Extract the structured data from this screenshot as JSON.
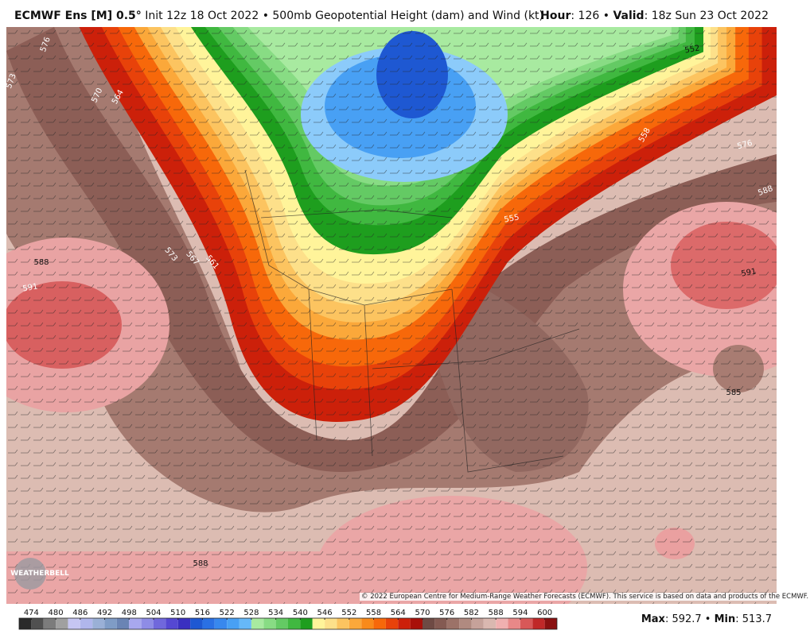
{
  "header": {
    "title": "ECMWF Ens [M] 0.5°",
    "description": "Init 12z 18 Oct 2022 • 500mb Geopotential Height (dam) and Wind (kt)",
    "right": [
      "Hour",
      ": 126 • ",
      "Valid",
      ": 18z Sun 23 Oct 2022"
    ]
  },
  "map": {
    "contour_labels": [
      576,
      573,
      570,
      564,
      573,
      567,
      561,
      588,
      591,
      552,
      558,
      576,
      588,
      555,
      591,
      585,
      588
    ],
    "logo": "WEATHERBELL",
    "copyright": "© 2022 European Centre for Medium-Range Weather Forecasts (ECMWF). This service is based on data and products of the ECMWF."
  },
  "colorbar": {
    "lim": [
      471,
      603
    ],
    "ticks": [
      474,
      480,
      486,
      492,
      498,
      504,
      510,
      516,
      522,
      528,
      534,
      540,
      546,
      552,
      558,
      564,
      570,
      576,
      582,
      588,
      594,
      600
    ],
    "colors": [
      "#2a2a2a",
      "#505050",
      "#7c7c7c",
      "#a0a0a0",
      "#c6c6f2",
      "#b0b6ec",
      "#9ab0d6",
      "#7f9cc6",
      "#6a84b4",
      "#a8a8ee",
      "#8e8ce6",
      "#7068dc",
      "#5548d2",
      "#3a30c0",
      "#1e58d2",
      "#2a70e4",
      "#3888ee",
      "#48a0f4",
      "#66b8f8",
      "#a8eaa0",
      "#88dc84",
      "#64ca64",
      "#40b840",
      "#1e9e1e",
      "#fff49a",
      "#fde08a",
      "#fcc460",
      "#fba83a",
      "#f98a1a",
      "#f7680a",
      "#e8420a",
      "#cc200a",
      "#a8100a",
      "#6e4a44",
      "#845a52",
      "#9c7268",
      "#b08a80",
      "#c6a29a",
      "#dab8b0",
      "#f0b0b0",
      "#e88888",
      "#d85858",
      "#c02828",
      "#8a1010"
    ]
  },
  "footer": {
    "stats": [
      "Max",
      ": 592.7 • ",
      "Min",
      ": 513.7"
    ]
  }
}
